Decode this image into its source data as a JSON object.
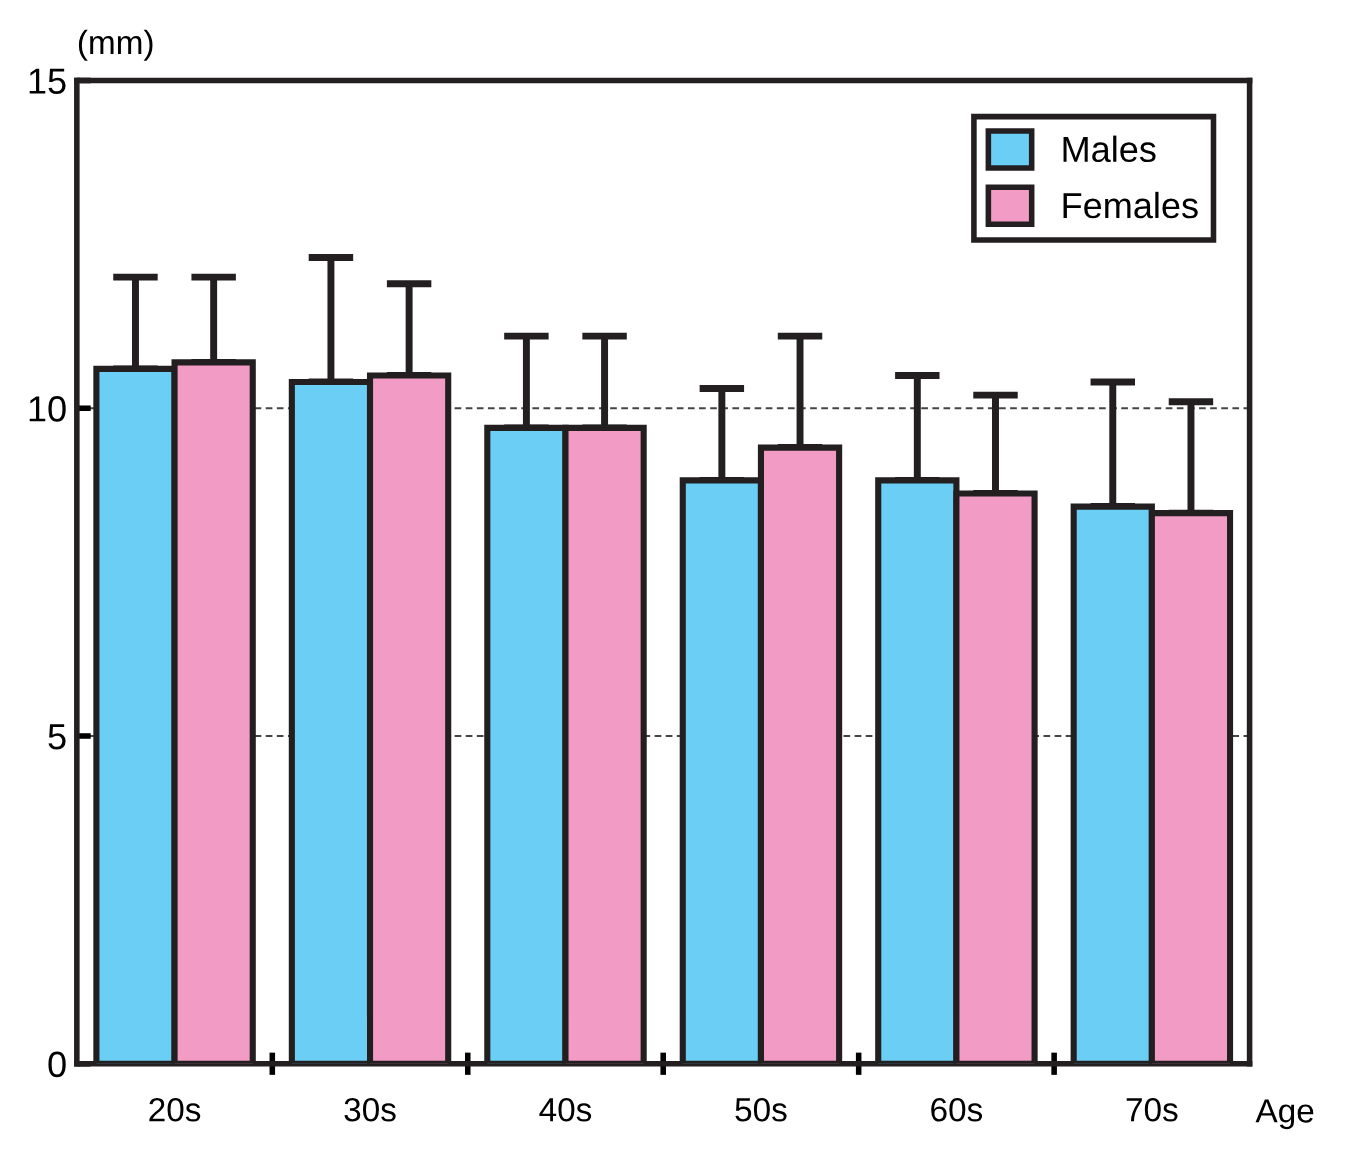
{
  "chart_data": {
    "type": "bar",
    "ylabel": "(mm)",
    "xlabel": "Age",
    "categories": [
      "20s",
      "30s",
      "40s",
      "50s",
      "60s",
      "70s"
    ],
    "series": [
      {
        "name": "Males",
        "color": "#6bcef5",
        "values": [
          10.6,
          10.4,
          9.7,
          8.9,
          8.9,
          8.5
        ],
        "errors": [
          [
            10.6,
            12.0
          ],
          [
            10.4,
            12.3
          ],
          [
            9.7,
            11.1
          ],
          [
            8.9,
            10.3
          ],
          [
            8.9,
            10.5
          ],
          [
            8.5,
            10.4
          ]
        ]
      },
      {
        "name": "Females",
        "color": "#f29bc4",
        "values": [
          10.7,
          10.5,
          9.7,
          9.4,
          8.7,
          8.4
        ],
        "errors": [
          [
            10.7,
            12.0
          ],
          [
            10.5,
            11.9
          ],
          [
            9.7,
            11.1
          ],
          [
            9.4,
            11.1
          ],
          [
            8.7,
            10.2
          ],
          [
            8.4,
            10.1
          ]
        ]
      }
    ],
    "ylim": [
      0,
      15
    ],
    "yticks": [
      0,
      5,
      10,
      15
    ],
    "grid": "y",
    "legend": "top right"
  }
}
